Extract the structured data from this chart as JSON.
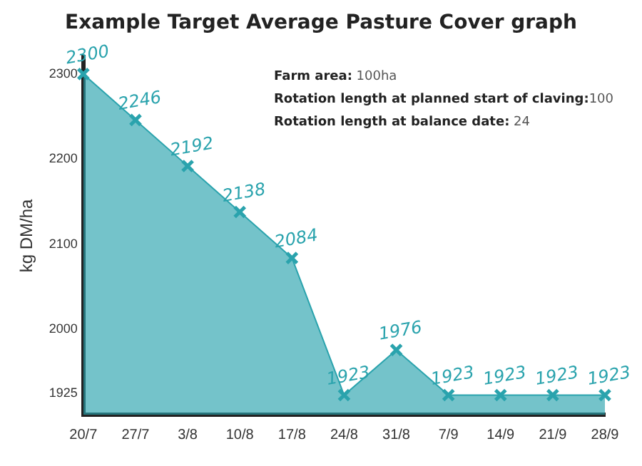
{
  "chart_data": {
    "type": "area",
    "title": "Example Target Average Pasture Cover graph",
    "ylabel": "kg DM/ha",
    "categories": [
      "20/7",
      "27/7",
      "3/8",
      "10/8",
      "17/8",
      "24/8",
      "31/8",
      "7/9",
      "14/9",
      "21/9",
      "28/9"
    ],
    "series": [
      {
        "color": "#2aa3ad",
        "values": [
          2300,
          2246,
          2192,
          2138,
          2084,
          1923,
          1976,
          1923,
          1923,
          1923,
          1923
        ]
      }
    ],
    "ylim": [
      1900,
      2320
    ],
    "yticks": [
      1925,
      2000,
      2100,
      2200,
      2300
    ],
    "data_labels": true,
    "marker": "cross",
    "grid": false,
    "legend": false,
    "annotations": [
      "Farm area: 100ha",
      "Rotation length at planned start of claving:100",
      "Rotation length at balance date: 24"
    ]
  }
}
